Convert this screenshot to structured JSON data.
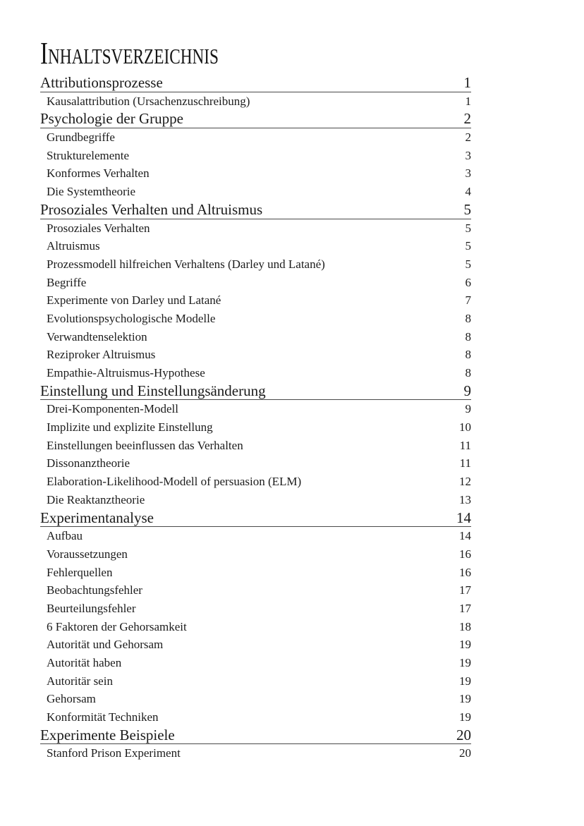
{
  "page": {
    "title": "Inhaltsverzeichnis"
  },
  "toc": {
    "sections": [
      {
        "title": "Attributionsprozesse",
        "page": "1",
        "entries": [
          {
            "label": "Kausalattribution (Ursachenzuschreibung)",
            "page": "1"
          }
        ]
      },
      {
        "title": "Psychologie der Gruppe",
        "page": "2",
        "entries": [
          {
            "label": "Grundbegriffe",
            "page": "2"
          },
          {
            "label": "Strukturelemente",
            "page": "3"
          },
          {
            "label": "Konformes Verhalten",
            "page": "3"
          },
          {
            "label": "Die Systemtheorie",
            "page": "4"
          }
        ]
      },
      {
        "title": "Prosoziales Verhalten und Altruismus",
        "page": "5",
        "entries": [
          {
            "label": "Prosoziales Verhalten",
            "page": "5"
          },
          {
            "label": "Altruismus",
            "page": "5"
          },
          {
            "label": "Prozessmodell hilfreichen Verhaltens (Darley und Latané)",
            "page": "5"
          },
          {
            "label": "Begriffe",
            "page": "6"
          },
          {
            "label": "Experimente von Darley und Latané",
            "page": "7"
          },
          {
            "label": "Evolutionspsychologische Modelle",
            "page": "8"
          },
          {
            "label": "Verwandtenselektion",
            "page": "8"
          },
          {
            "label": "Reziproker Altruismus",
            "page": "8"
          },
          {
            "label": "Empathie-Altruismus-Hypothese",
            "page": "8"
          }
        ]
      },
      {
        "title": "Einstellung und Einstellungsänderung",
        "page": "9",
        "entries": [
          {
            "label": "Drei-Komponenten-Modell",
            "page": "9"
          },
          {
            "label": "Implizite und explizite Einstellung",
            "page": "10"
          },
          {
            "label": "Einstellungen beeinflussen das Verhalten",
            "page": "11"
          },
          {
            "label": "Dissonanztheorie",
            "page": "11"
          },
          {
            "label": "Elaboration-Likelihood-Modell of persuasion (ELM)",
            "page": "12"
          },
          {
            "label": "Die Reaktanztheorie",
            "page": "13"
          }
        ]
      },
      {
        "title": "Experimentanalyse",
        "page": "14",
        "entries": [
          {
            "label": "Aufbau",
            "page": "14"
          },
          {
            "label": "Voraussetzungen",
            "page": "16"
          },
          {
            "label": "Fehlerquellen",
            "page": "16"
          },
          {
            "label": "Beobachtungsfehler",
            "page": "17"
          },
          {
            "label": "Beurteilungsfehler",
            "page": "17"
          },
          {
            "label": "6 Faktoren der Gehorsamkeit",
            "page": "18"
          },
          {
            "label": "Autorität und Gehorsam",
            "page": "19"
          },
          {
            "label": "Autorität haben",
            "page": "19"
          },
          {
            "label": "Autoritär sein",
            "page": "19"
          },
          {
            "label": "Gehorsam",
            "page": "19"
          },
          {
            "label": "Konformität Techniken",
            "page": "19"
          }
        ]
      },
      {
        "title": "Experimente Beispiele",
        "page": "20",
        "entries": [
          {
            "label": "Stanford Prison Experiment",
            "page": "20"
          }
        ]
      }
    ]
  }
}
